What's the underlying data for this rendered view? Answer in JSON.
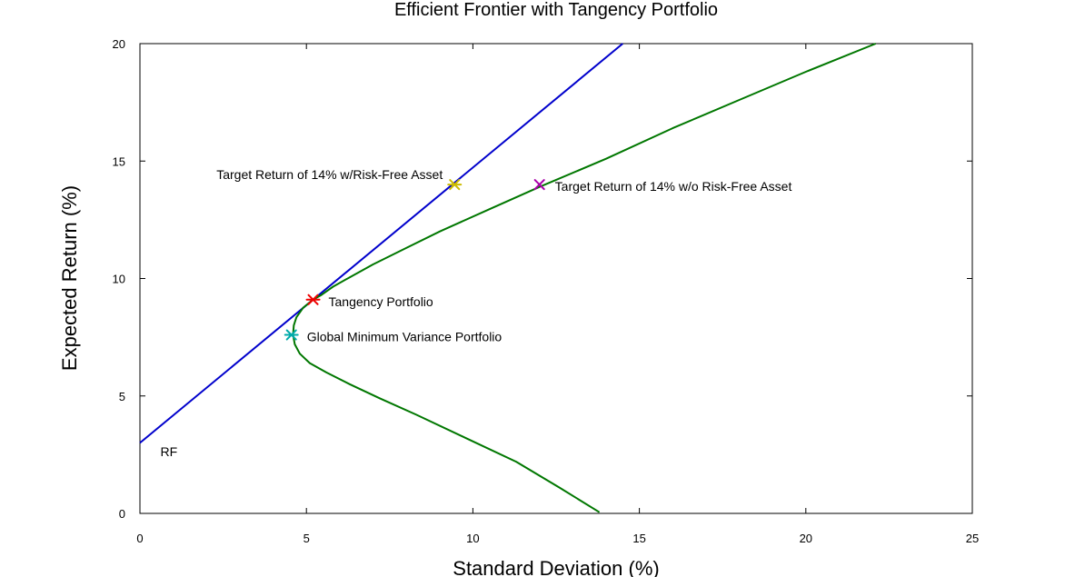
{
  "chart_data": {
    "type": "line",
    "title": "Efficient Frontier with Tangency Portfolio",
    "xlabel": "Standard Deviation (%)",
    "ylabel": "Expected Return (%)",
    "xlim": [
      0,
      25
    ],
    "ylim": [
      0,
      20
    ],
    "xticks": [
      "0",
      "5",
      "10",
      "15",
      "20",
      "25"
    ],
    "yticks": [
      "0",
      "5",
      "10",
      "15",
      "20"
    ],
    "grid": false,
    "series": [
      {
        "color": "#0000cc",
        "x": [
          0,
          14.5
        ],
        "y": [
          3.0,
          20.0
        ]
      },
      {
        "color": "#007700",
        "x": [
          22.1,
          20.0,
          18.0,
          16.0,
          14.0,
          12.0,
          10.5,
          9.0,
          8.0,
          7.0,
          6.3,
          5.8,
          5.45,
          5.2,
          4.9,
          4.7,
          4.62,
          4.6,
          4.65,
          4.8,
          5.1,
          5.6,
          6.3,
          7.2,
          8.3,
          9.8,
          11.3,
          12.6,
          13.8
        ],
        "y": [
          20.0,
          18.8,
          17.6,
          16.4,
          15.1,
          13.9,
          12.95,
          12.0,
          11.3,
          10.6,
          10.05,
          9.65,
          9.3,
          9.1,
          8.75,
          8.35,
          8.0,
          7.6,
          7.2,
          6.8,
          6.4,
          6.0,
          5.5,
          4.9,
          4.2,
          3.2,
          2.2,
          1.1,
          0.05
        ]
      }
    ],
    "points": [
      {
        "x": 5.2,
        "y": 9.1,
        "marker": "asterisk",
        "color": "#ee0000",
        "label": "Tangency Portfolio",
        "label_side": "right"
      },
      {
        "x": 4.55,
        "y": 7.6,
        "marker": "asterisk",
        "color": "#00aaaa",
        "label": "Global Minimum Variance Portfolio",
        "label_side": "right"
      },
      {
        "x": 9.45,
        "y": 14.0,
        "marker": "asterisk",
        "color": "#ccbb00",
        "label": "Target Return of 14% w/Risk-Free Asset",
        "label_side": "left"
      },
      {
        "x": 12.0,
        "y": 14.0,
        "marker": "x",
        "color": "#aa00aa",
        "label": "Target Return of 14% w/o Risk-Free Asset",
        "label_side": "right"
      }
    ],
    "annotations": [
      {
        "text": "RF",
        "x": 0.45,
        "y": 2.9
      }
    ]
  }
}
